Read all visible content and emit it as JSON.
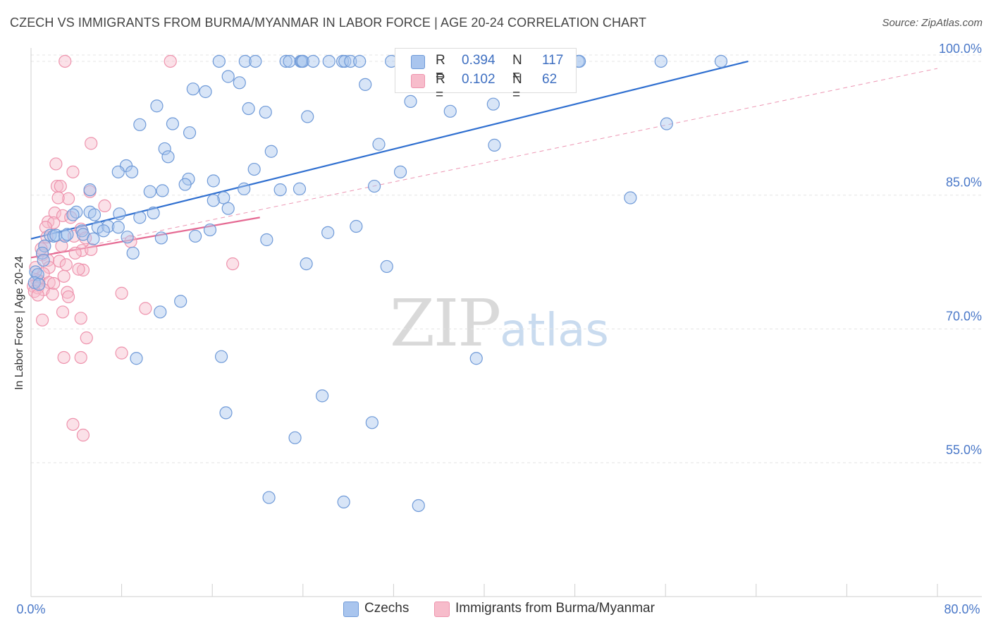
{
  "title": "CZECH VS IMMIGRANTS FROM BURMA/MYANMAR IN LABOR FORCE | AGE 20-24 CORRELATION CHART",
  "source": "Source: ZipAtlas.com",
  "watermark": {
    "zip": "ZIP",
    "atlas": "atlas"
  },
  "legend": {
    "r_label": "R =",
    "n_label": "N =",
    "series": [
      {
        "name": "Czechs",
        "r": "0.394",
        "n": "117"
      },
      {
        "name": "Immigrants from Burma/Myanmar",
        "r": "0.102",
        "n": "62"
      }
    ]
  },
  "colors": {
    "blue_fill": "#a9c5ee",
    "blue_stroke": "#6f9ad8",
    "blue_line": "#2f6fd0",
    "pink_fill": "#f7bccb",
    "pink_stroke": "#ee93ad",
    "pink_line": "#e56a93",
    "tick_text": "#4a78c8",
    "grid": "#e4e4e4"
  },
  "chart_data": {
    "type": "scatter",
    "title": "CZECH VS IMMIGRANTS FROM BURMA/MYANMAR IN LABOR FORCE | AGE 20-24 CORRELATION CHART",
    "ylabel": "In Labor Force | Age 20-24",
    "xlabel": "",
    "xlim": [
      0,
      80
    ],
    "ylim": [
      40,
      101.5
    ],
    "x_tick_labels": [
      "0.0%",
      "80.0%"
    ],
    "y_ticks": [
      55,
      70,
      85,
      100
    ],
    "y_tick_labels": [
      "55.0%",
      "70.0%",
      "85.0%",
      "100.0%"
    ],
    "legend_position": "top-center",
    "grid": true,
    "series": [
      {
        "name": "Czechs",
        "color": "#a9c5ee",
        "r": 0.394,
        "n": 117,
        "trend": {
          "x": [
            0,
            63.3
          ],
          "y": [
            80.1,
            100.0
          ],
          "style": "solid"
        },
        "points": [
          [
            16.6,
            100.0
          ],
          [
            18.9,
            100.0
          ],
          [
            19.8,
            100.0
          ],
          [
            22.5,
            100.0
          ],
          [
            22.8,
            100.0
          ],
          [
            23.8,
            100.0
          ],
          [
            23.9,
            100.0
          ],
          [
            24.0,
            100.0
          ],
          [
            24.9,
            100.0
          ],
          [
            26.3,
            100.0
          ],
          [
            27.5,
            100.0
          ],
          [
            27.7,
            100.0
          ],
          [
            28.2,
            100.0
          ],
          [
            29.0,
            100.0
          ],
          [
            31.8,
            100.0
          ],
          [
            33.0,
            100.0
          ],
          [
            34.1,
            100.0
          ],
          [
            35.0,
            100.0
          ],
          [
            35.4,
            100.0
          ],
          [
            35.9,
            100.0
          ],
          [
            36.4,
            100.0
          ],
          [
            37.1,
            100.0
          ],
          [
            37.7,
            100.0
          ],
          [
            37.9,
            100.0
          ],
          [
            38.4,
            100.0
          ],
          [
            38.7,
            100.0
          ],
          [
            39.6,
            100.0
          ],
          [
            40.3,
            100.0
          ],
          [
            41.2,
            100.0
          ],
          [
            41.5,
            100.0
          ],
          [
            42.0,
            100.0
          ],
          [
            42.9,
            100.0
          ],
          [
            43.8,
            100.0
          ],
          [
            44.2,
            100.0
          ],
          [
            44.7,
            100.0
          ],
          [
            48.3,
            100.0
          ],
          [
            48.4,
            100.0
          ],
          [
            55.6,
            100.0
          ],
          [
            60.9,
            100.0
          ],
          [
            17.4,
            98.3
          ],
          [
            18.4,
            97.6
          ],
          [
            14.3,
            96.9
          ],
          [
            15.4,
            96.6
          ],
          [
            29.5,
            97.4
          ],
          [
            33.5,
            95.5
          ],
          [
            11.1,
            95.0
          ],
          [
            19.2,
            94.7
          ],
          [
            20.7,
            94.3
          ],
          [
            24.4,
            93.8
          ],
          [
            37.0,
            94.4
          ],
          [
            40.8,
            95.2
          ],
          [
            56.1,
            93.0
          ],
          [
            9.6,
            92.9
          ],
          [
            12.5,
            93.0
          ],
          [
            14.0,
            92.0
          ],
          [
            30.7,
            90.7
          ],
          [
            40.9,
            90.6
          ],
          [
            11.8,
            90.2
          ],
          [
            21.2,
            89.9
          ],
          [
            12.1,
            89.3
          ],
          [
            8.4,
            88.3
          ],
          [
            7.7,
            87.6
          ],
          [
            8.9,
            87.6
          ],
          [
            19.7,
            87.9
          ],
          [
            32.6,
            87.6
          ],
          [
            13.9,
            86.8
          ],
          [
            16.1,
            86.6
          ],
          [
            13.6,
            86.2
          ],
          [
            30.3,
            86.0
          ],
          [
            5.2,
            85.6
          ],
          [
            10.5,
            85.4
          ],
          [
            11.6,
            85.5
          ],
          [
            18.8,
            85.7
          ],
          [
            22.0,
            85.6
          ],
          [
            23.7,
            85.7
          ],
          [
            17.0,
            84.7
          ],
          [
            52.9,
            84.7
          ],
          [
            16.1,
            84.4
          ],
          [
            17.4,
            83.5
          ],
          [
            4.0,
            83.1
          ],
          [
            5.2,
            83.1
          ],
          [
            10.8,
            83.0
          ],
          [
            3.7,
            82.8
          ],
          [
            5.6,
            82.8
          ],
          [
            7.8,
            82.9
          ],
          [
            9.6,
            82.5
          ],
          [
            5.9,
            81.4
          ],
          [
            6.8,
            81.5
          ],
          [
            7.7,
            81.4
          ],
          [
            4.5,
            81.0
          ],
          [
            6.4,
            81.0
          ],
          [
            15.8,
            81.1
          ],
          [
            26.2,
            80.8
          ],
          [
            28.7,
            81.5
          ],
          [
            1.7,
            80.5
          ],
          [
            2.0,
            80.4
          ],
          [
            2.2,
            80.5
          ],
          [
            3.0,
            80.4
          ],
          [
            3.2,
            80.6
          ],
          [
            4.6,
            80.6
          ],
          [
            8.5,
            80.3
          ],
          [
            11.5,
            80.2
          ],
          [
            14.5,
            80.4
          ],
          [
            20.8,
            80.0
          ],
          [
            1.2,
            79.3
          ],
          [
            5.5,
            80.1
          ],
          [
            1.0,
            78.5
          ],
          [
            9.0,
            78.5
          ],
          [
            1.1,
            77.7
          ],
          [
            24.3,
            77.3
          ],
          [
            31.4,
            77.0
          ],
          [
            0.4,
            76.4
          ],
          [
            0.6,
            76.1
          ],
          [
            0.3,
            75.2
          ],
          [
            0.7,
            75.0
          ],
          [
            13.2,
            73.1
          ],
          [
            11.4,
            71.9
          ],
          [
            9.3,
            66.7
          ],
          [
            16.8,
            66.9
          ],
          [
            39.3,
            66.7
          ],
          [
            25.7,
            62.5
          ],
          [
            17.2,
            60.6
          ],
          [
            30.1,
            59.5
          ],
          [
            23.3,
            57.8
          ],
          [
            21.0,
            51.1
          ],
          [
            27.6,
            50.6
          ],
          [
            34.2,
            50.2
          ]
        ]
      },
      {
        "name": "Immigrants from Burma/Myanmar",
        "color": "#f7bccb",
        "r": 0.102,
        "n": 62,
        "trend_solid": {
          "x": [
            0,
            20.2
          ],
          "y": [
            78.0,
            82.5
          ]
        },
        "trend_dashed": {
          "x": [
            0,
            80
          ],
          "y": [
            78.0,
            99.2
          ]
        },
        "points": [
          [
            3.0,
            100.0
          ],
          [
            12.3,
            100.0
          ],
          [
            5.3,
            90.8
          ],
          [
            2.2,
            88.5
          ],
          [
            3.7,
            87.6
          ],
          [
            2.3,
            86.0
          ],
          [
            2.6,
            86.0
          ],
          [
            3.3,
            84.6
          ],
          [
            5.2,
            85.4
          ],
          [
            6.5,
            83.8
          ],
          [
            2.1,
            83.0
          ],
          [
            2.8,
            82.7
          ],
          [
            1.5,
            82.0
          ],
          [
            2.0,
            81.9
          ],
          [
            1.3,
            81.4
          ],
          [
            4.4,
            81.2
          ],
          [
            3.8,
            80.4
          ],
          [
            4.8,
            80.2
          ],
          [
            8.8,
            79.8
          ],
          [
            1.2,
            79.3
          ],
          [
            2.7,
            79.3
          ],
          [
            4.5,
            78.8
          ],
          [
            3.9,
            78.5
          ],
          [
            1.0,
            78.3
          ],
          [
            1.5,
            77.7
          ],
          [
            2.5,
            77.6
          ],
          [
            17.8,
            77.3
          ],
          [
            1.6,
            76.9
          ],
          [
            4.6,
            76.6
          ],
          [
            1.1,
            76.2
          ],
          [
            0.5,
            75.5
          ],
          [
            0.7,
            75.4
          ],
          [
            1.6,
            75.2
          ],
          [
            2.0,
            75.1
          ],
          [
            0.2,
            74.8
          ],
          [
            0.6,
            74.6
          ],
          [
            1.1,
            74.4
          ],
          [
            0.3,
            74.2
          ],
          [
            3.2,
            74.1
          ],
          [
            8.0,
            74.0
          ],
          [
            3.3,
            73.6
          ],
          [
            0.6,
            73.8
          ],
          [
            10.1,
            72.3
          ],
          [
            2.8,
            71.9
          ],
          [
            4.4,
            71.2
          ],
          [
            1.0,
            71.0
          ],
          [
            4.9,
            69.0
          ],
          [
            8.0,
            67.3
          ],
          [
            2.9,
            66.8
          ],
          [
            4.4,
            66.8
          ],
          [
            3.7,
            59.3
          ],
          [
            4.6,
            58.1
          ],
          [
            0.9,
            79.0
          ],
          [
            3.5,
            82.5
          ],
          [
            2.9,
            75.9
          ],
          [
            1.9,
            73.9
          ],
          [
            0.4,
            76.9
          ],
          [
            4.2,
            76.7
          ],
          [
            5.3,
            78.9
          ],
          [
            3.1,
            77.2
          ],
          [
            1.4,
            80.3
          ],
          [
            2.4,
            84.7
          ]
        ]
      }
    ]
  }
}
